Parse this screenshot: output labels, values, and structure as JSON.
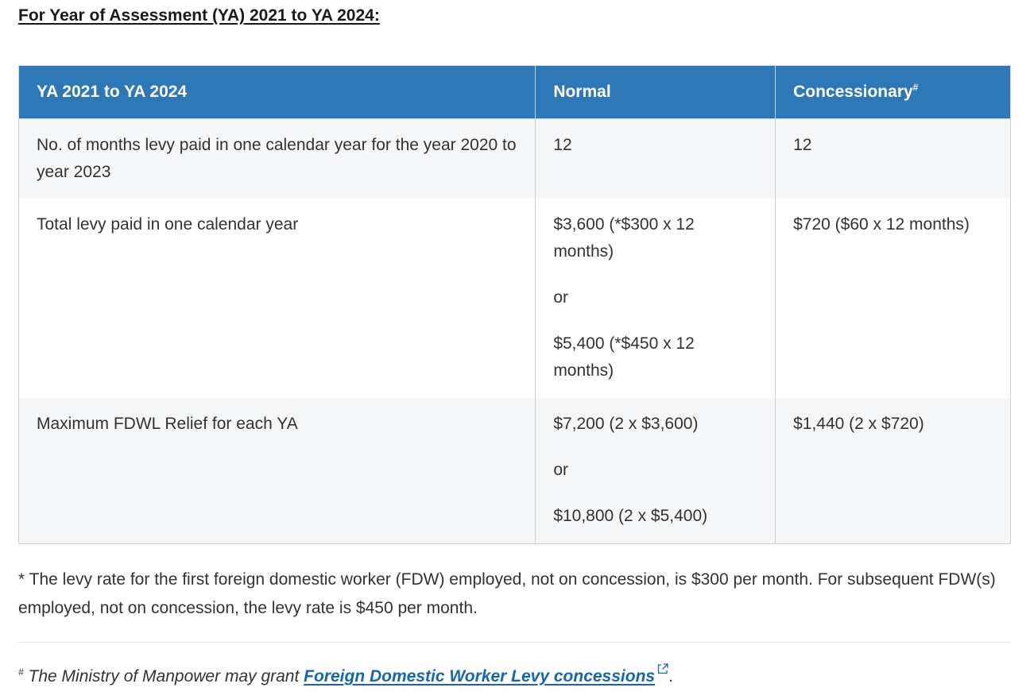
{
  "heading": "For Year of Assessment (YA) 2021 to YA 2024:",
  "table": {
    "headers": {
      "col1": "YA 2021 to YA 2024",
      "col2": "Normal",
      "col3": "Concessionary",
      "col3_marker": "#"
    },
    "rows": [
      {
        "label": "No. of months levy paid in one calendar year for the year 2020 to year 2023",
        "normal": [
          "12"
        ],
        "concessionary": [
          "12"
        ]
      },
      {
        "label": "Total levy paid in one calendar year",
        "normal": [
          "$3,600 (*$300 x 12 months)",
          "or",
          "$5,400 (*$450 x 12 months)"
        ],
        "concessionary": [
          "$720 ($60 x 12 months)"
        ]
      },
      {
        "label": "Maximum FDWL Relief for each YA",
        "normal": [
          "$7,200 (2 x $3,600)",
          "or",
          "$10,800 (2 x $5,400)"
        ],
        "concessionary": [
          "$1,440 (2 x $720)"
        ]
      }
    ]
  },
  "footnote_star": "* The levy rate for the first foreign domestic worker (FDW) employed, not on concession, is $300 per month. For subsequent FDW(s) employed, not on concession, the levy rate is $450 per month.",
  "footnote_hash": {
    "marker": "#",
    "text": " The Ministry of Manpower may grant ",
    "link_label": "Foreign Domestic Worker Levy concessions",
    "link_icon": "external-link-icon",
    "end": "."
  },
  "colors": {
    "header_bg": "#2f78b8",
    "row_alt_bg": "#f4f6f8",
    "link": "#1565b0"
  }
}
